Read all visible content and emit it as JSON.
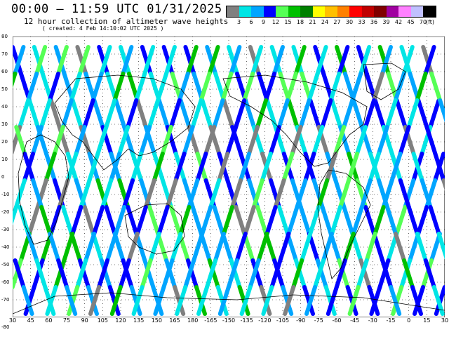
{
  "title": "00:00 – 11:59 UTC 01/31/2025",
  "subtitle": "12 hour collection of altimeter wave heights",
  "created": "( created:  4 Feb 14:10:02 UTC 2025 )",
  "colorbar": {
    "colors": [
      "#808080",
      "#00e5e5",
      "#00a5ff",
      "#0000ff",
      "#55ff55",
      "#00c000",
      "#008000",
      "#ffff00",
      "#ffc000",
      "#ff8000",
      "#ff0000",
      "#c00000",
      "#800000",
      "#a000a0",
      "#ff80ff",
      "#c0c0ff",
      "#000000"
    ],
    "labels": [
      "3",
      "6",
      "9",
      "12",
      "15",
      "18",
      "21",
      "24",
      "27",
      "30",
      "33",
      "36",
      "39",
      "42",
      "45",
      "70"
    ],
    "unit": "(ft)"
  },
  "lat_labels": [
    "80",
    "70",
    "60",
    "50",
    "40",
    "30",
    "20",
    "10",
    "0",
    "-10",
    "-20",
    "-30",
    "-40",
    "-50",
    "-60",
    "-70"
  ],
  "lon_labels": [
    "30",
    "45",
    "60",
    "75",
    "90",
    "105",
    "120",
    "135",
    "150",
    "165",
    "180",
    "-165",
    "-150",
    "-135",
    "-120",
    "-105",
    "-90",
    "-75",
    "-60",
    "-45",
    "-30",
    "-15",
    "0",
    "15",
    "30"
  ],
  "bottom_lat_label": "-80"
}
